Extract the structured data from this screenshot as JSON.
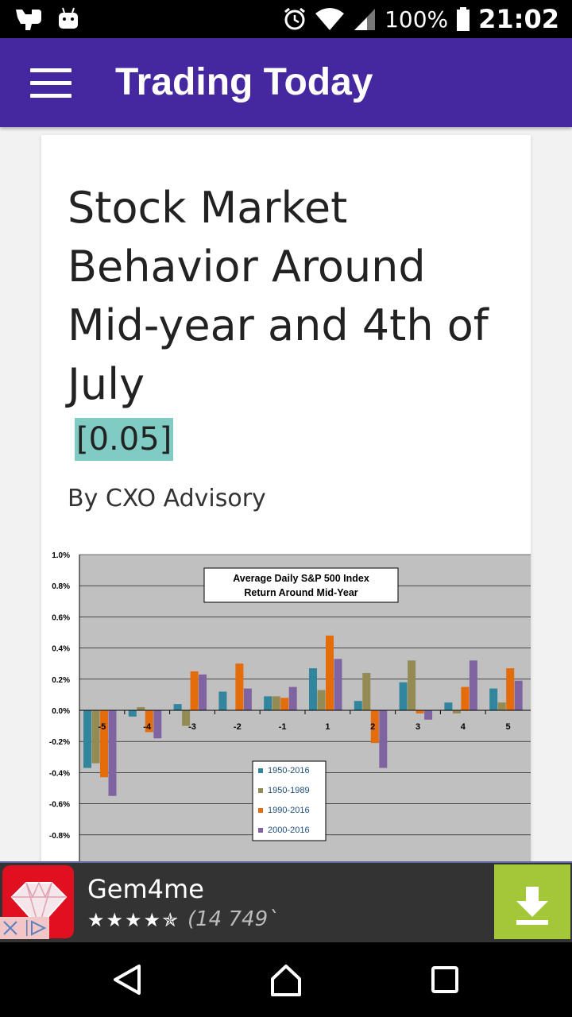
{
  "status": {
    "battery": "100%",
    "time": "21:02"
  },
  "appbar": {
    "title": "Trading Today"
  },
  "article": {
    "title": "Stock Market Behavior Around Mid-year and 4th of July",
    "score": "[0.05]",
    "byline": "By CXO Advisory"
  },
  "chart_data": {
    "type": "bar",
    "title": "Average Daily S&P 500 Index Return Around Mid-Year",
    "categories": [
      "-5",
      "-4",
      "-3",
      "-2",
      "-1",
      "1",
      "2",
      "3",
      "4",
      "5"
    ],
    "yticks": [
      "1.0%",
      "0.8%",
      "0.6%",
      "0.4%",
      "0.2%",
      "0.0%",
      "-0.2%",
      "-0.4%",
      "-0.6%",
      "-0.8%"
    ],
    "ylim": [
      -0.95,
      1.0
    ],
    "grid": true,
    "legend_position": "bottom-center",
    "series": [
      {
        "name": "1950-2016",
        "color": "#31859c",
        "values": [
          -0.37,
          -0.04,
          0.04,
          0.12,
          0.09,
          0.27,
          0.06,
          0.18,
          0.05,
          0.14
        ]
      },
      {
        "name": "1950-1989",
        "color": "#948a54",
        "values": [
          -0.34,
          0.02,
          -0.1,
          0.0,
          0.09,
          0.13,
          0.24,
          0.32,
          -0.02,
          0.05
        ]
      },
      {
        "name": "1990-2016",
        "color": "#e46c0a",
        "values": [
          -0.43,
          -0.14,
          0.25,
          0.3,
          0.08,
          0.48,
          -0.21,
          -0.02,
          0.15,
          0.27
        ]
      },
      {
        "name": "2000-2016",
        "color": "#8064a2",
        "values": [
          -0.55,
          -0.18,
          0.23,
          0.14,
          0.15,
          0.33,
          -0.37,
          -0.06,
          0.32,
          0.19
        ]
      }
    ]
  },
  "ad": {
    "name": "Gem4me",
    "stars": "★★★★✯",
    "count": "(14 749`"
  }
}
